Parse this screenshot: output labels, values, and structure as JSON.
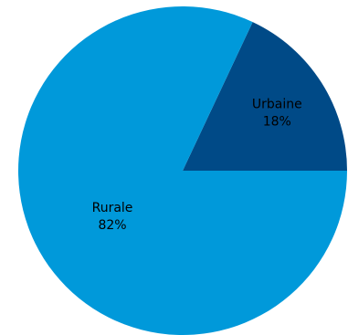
{
  "chart_data": {
    "type": "pie",
    "title": "",
    "slices": [
      {
        "label": "Urbaine",
        "value": 18,
        "value_label": "18%",
        "color": "#004a87"
      },
      {
        "label": "Rurale",
        "value": 82,
        "value_label": "82%",
        "color": "#0099da"
      }
    ],
    "legend": "none",
    "labels_inside": true
  }
}
